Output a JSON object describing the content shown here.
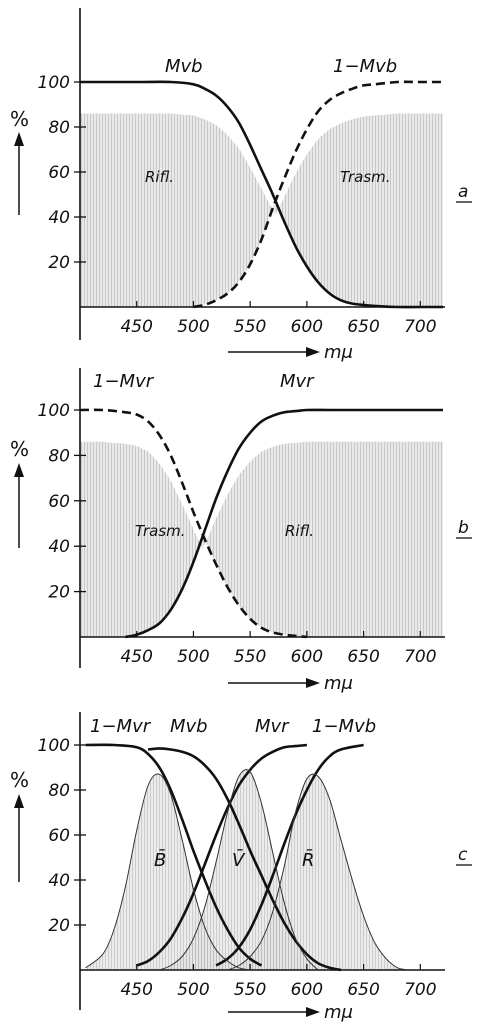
{
  "chart_data": [
    {
      "panel": "a",
      "type": "line",
      "xlabel": "mμ",
      "ylabel": "%",
      "xlim": [
        400,
        720
      ],
      "ylim": [
        0,
        115
      ],
      "x_ticks": [
        450,
        500,
        550,
        600,
        650,
        700
      ],
      "y_ticks": [
        20,
        40,
        60,
        80,
        100
      ],
      "series": [
        {
          "name": "Mvb",
          "style": "solid",
          "x": [
            400,
            450,
            480,
            500,
            510,
            520,
            530,
            540,
            550,
            560,
            570,
            580,
            590,
            600,
            610,
            620,
            630,
            640,
            660,
            680,
            700,
            720
          ],
          "y": [
            100,
            100,
            100,
            99,
            97,
            94,
            89,
            82,
            72,
            61,
            50,
            38,
            27,
            18,
            11,
            6,
            3,
            1.5,
            0.5,
            0,
            0,
            0
          ]
        },
        {
          "name": "1−Mvb",
          "style": "dashed",
          "x": [
            500,
            510,
            520,
            530,
            540,
            550,
            560,
            570,
            580,
            590,
            600,
            610,
            620,
            630,
            640,
            650,
            660,
            680,
            700,
            720
          ],
          "y": [
            0,
            1,
            3,
            6,
            11,
            19,
            30,
            44,
            57,
            69,
            79,
            87,
            92,
            95,
            97,
            98.5,
            99,
            100,
            100,
            100
          ]
        }
      ],
      "annotations": [
        "Rifl.",
        "Trasm."
      ]
    },
    {
      "panel": "b",
      "type": "line",
      "xlabel": "mμ",
      "ylabel": "%",
      "xlim": [
        400,
        720
      ],
      "ylim": [
        0,
        115
      ],
      "x_ticks": [
        450,
        500,
        550,
        600,
        650,
        700
      ],
      "y_ticks": [
        20,
        40,
        60,
        80,
        100
      ],
      "series": [
        {
          "name": "1−Mvr",
          "style": "dashed",
          "x": [
            400,
            420,
            440,
            450,
            460,
            470,
            480,
            490,
            500,
            510,
            520,
            530,
            540,
            550,
            560,
            570,
            580,
            590,
            600
          ],
          "y": [
            100,
            100,
            99,
            98,
            95,
            89,
            80,
            68,
            55,
            43,
            32,
            22,
            14,
            8,
            4,
            2,
            1,
            0.5,
            0
          ]
        },
        {
          "name": "Mvr",
          "style": "solid",
          "x": [
            440,
            450,
            460,
            470,
            480,
            490,
            500,
            510,
            520,
            530,
            540,
            550,
            560,
            570,
            580,
            590,
            600,
            620,
            650,
            700,
            720
          ],
          "y": [
            0,
            1,
            3,
            6,
            12,
            21,
            33,
            47,
            61,
            73,
            83,
            90,
            95,
            97.5,
            99,
            99.5,
            100,
            100,
            100,
            100,
            100
          ]
        }
      ],
      "annotations": [
        "Trasm.",
        "Rifl."
      ]
    },
    {
      "panel": "c",
      "type": "line",
      "xlabel": "mμ",
      "ylabel": "%",
      "xlim": [
        400,
        720
      ],
      "ylim": [
        0,
        115
      ],
      "x_ticks": [
        450,
        500,
        550,
        600,
        650,
        700
      ],
      "y_ticks": [
        20,
        40,
        60,
        80,
        100
      ],
      "series": [
        {
          "name": "1−Mvr",
          "style": "solid",
          "x": [
            405,
            430,
            450,
            460,
            470,
            480,
            490,
            500,
            510,
            520,
            530,
            540,
            550,
            560
          ],
          "y": [
            100,
            100,
            99,
            96,
            90,
            80,
            67,
            53,
            40,
            28,
            18,
            10,
            5,
            2
          ]
        },
        {
          "name": "Mvb",
          "style": "solid",
          "x": [
            460,
            470,
            480,
            490,
            500,
            510,
            520,
            530,
            540,
            550,
            560,
            570,
            580,
            590,
            600,
            610,
            620,
            630
          ],
          "y": [
            98,
            98.5,
            98,
            97,
            95,
            91,
            85,
            76,
            65,
            53,
            42,
            31,
            21,
            13,
            7,
            3,
            1,
            0
          ]
        },
        {
          "name": "Mvr",
          "style": "solid",
          "x": [
            450,
            460,
            470,
            480,
            490,
            500,
            510,
            520,
            530,
            540,
            550,
            560,
            570,
            580,
            590,
            600
          ],
          "y": [
            2,
            4,
            8,
            14,
            23,
            34,
            47,
            60,
            72,
            82,
            89,
            94,
            97,
            99,
            99.5,
            100
          ]
        },
        {
          "name": "1−Mvb",
          "style": "solid",
          "x": [
            520,
            530,
            540,
            550,
            560,
            570,
            580,
            590,
            600,
            610,
            620,
            630,
            650
          ],
          "y": [
            2,
            5,
            10,
            18,
            29,
            42,
            56,
            69,
            80,
            89,
            95,
            98,
            100
          ]
        },
        {
          "name": "B̄",
          "style": "thin",
          "fill": true,
          "x": [
            405,
            420,
            430,
            440,
            450,
            460,
            470,
            480,
            490,
            500,
            510,
            520,
            530,
            540,
            550
          ],
          "y": [
            1,
            7,
            18,
            37,
            62,
            82,
            87,
            78,
            58,
            36,
            19,
            9,
            4,
            1,
            0
          ]
        },
        {
          "name": "V̄",
          "style": "thin",
          "fill": true,
          "x": [
            470,
            480,
            490,
            500,
            510,
            520,
            530,
            540,
            550,
            560,
            570,
            580,
            590,
            600,
            610
          ],
          "y": [
            0,
            2,
            6,
            14,
            28,
            48,
            70,
            86,
            88,
            74,
            52,
            30,
            14,
            5,
            0
          ]
        },
        {
          "name": "R̄",
          "style": "thin",
          "fill": true,
          "x": [
            530,
            540,
            550,
            560,
            570,
            580,
            590,
            600,
            610,
            620,
            630,
            640,
            650,
            660,
            670,
            680,
            690
          ],
          "y": [
            0,
            2,
            6,
            13,
            26,
            46,
            70,
            85,
            86,
            76,
            58,
            40,
            24,
            12,
            5,
            1,
            0
          ]
        }
      ],
      "annotations": [
        "B̄",
        "V̄",
        "R̄"
      ]
    }
  ],
  "panel_letters": [
    "a",
    "b",
    "c"
  ],
  "labels": {
    "percent": "%",
    "unit": "mμ",
    "a_mvb": "Mvb",
    "a_1mvb": "1−Mvb",
    "a_rifl": "Rifl.",
    "a_trasm": "Trasm.",
    "b_1mvr": "1−Mvr",
    "b_mvr": "Mvr",
    "b_trasm": "Trasm.",
    "b_rifl": "Rifl.",
    "c_1mvr": "1−Mvr",
    "c_mvb": "Mvb",
    "c_mvr": "Mvr",
    "c_1mvb": "1−Mvb",
    "c_B": "B̄",
    "c_V": "V̄",
    "c_R": "R̄"
  },
  "colors": {
    "ink": "#111111",
    "shade": "#9a9a9a"
  }
}
